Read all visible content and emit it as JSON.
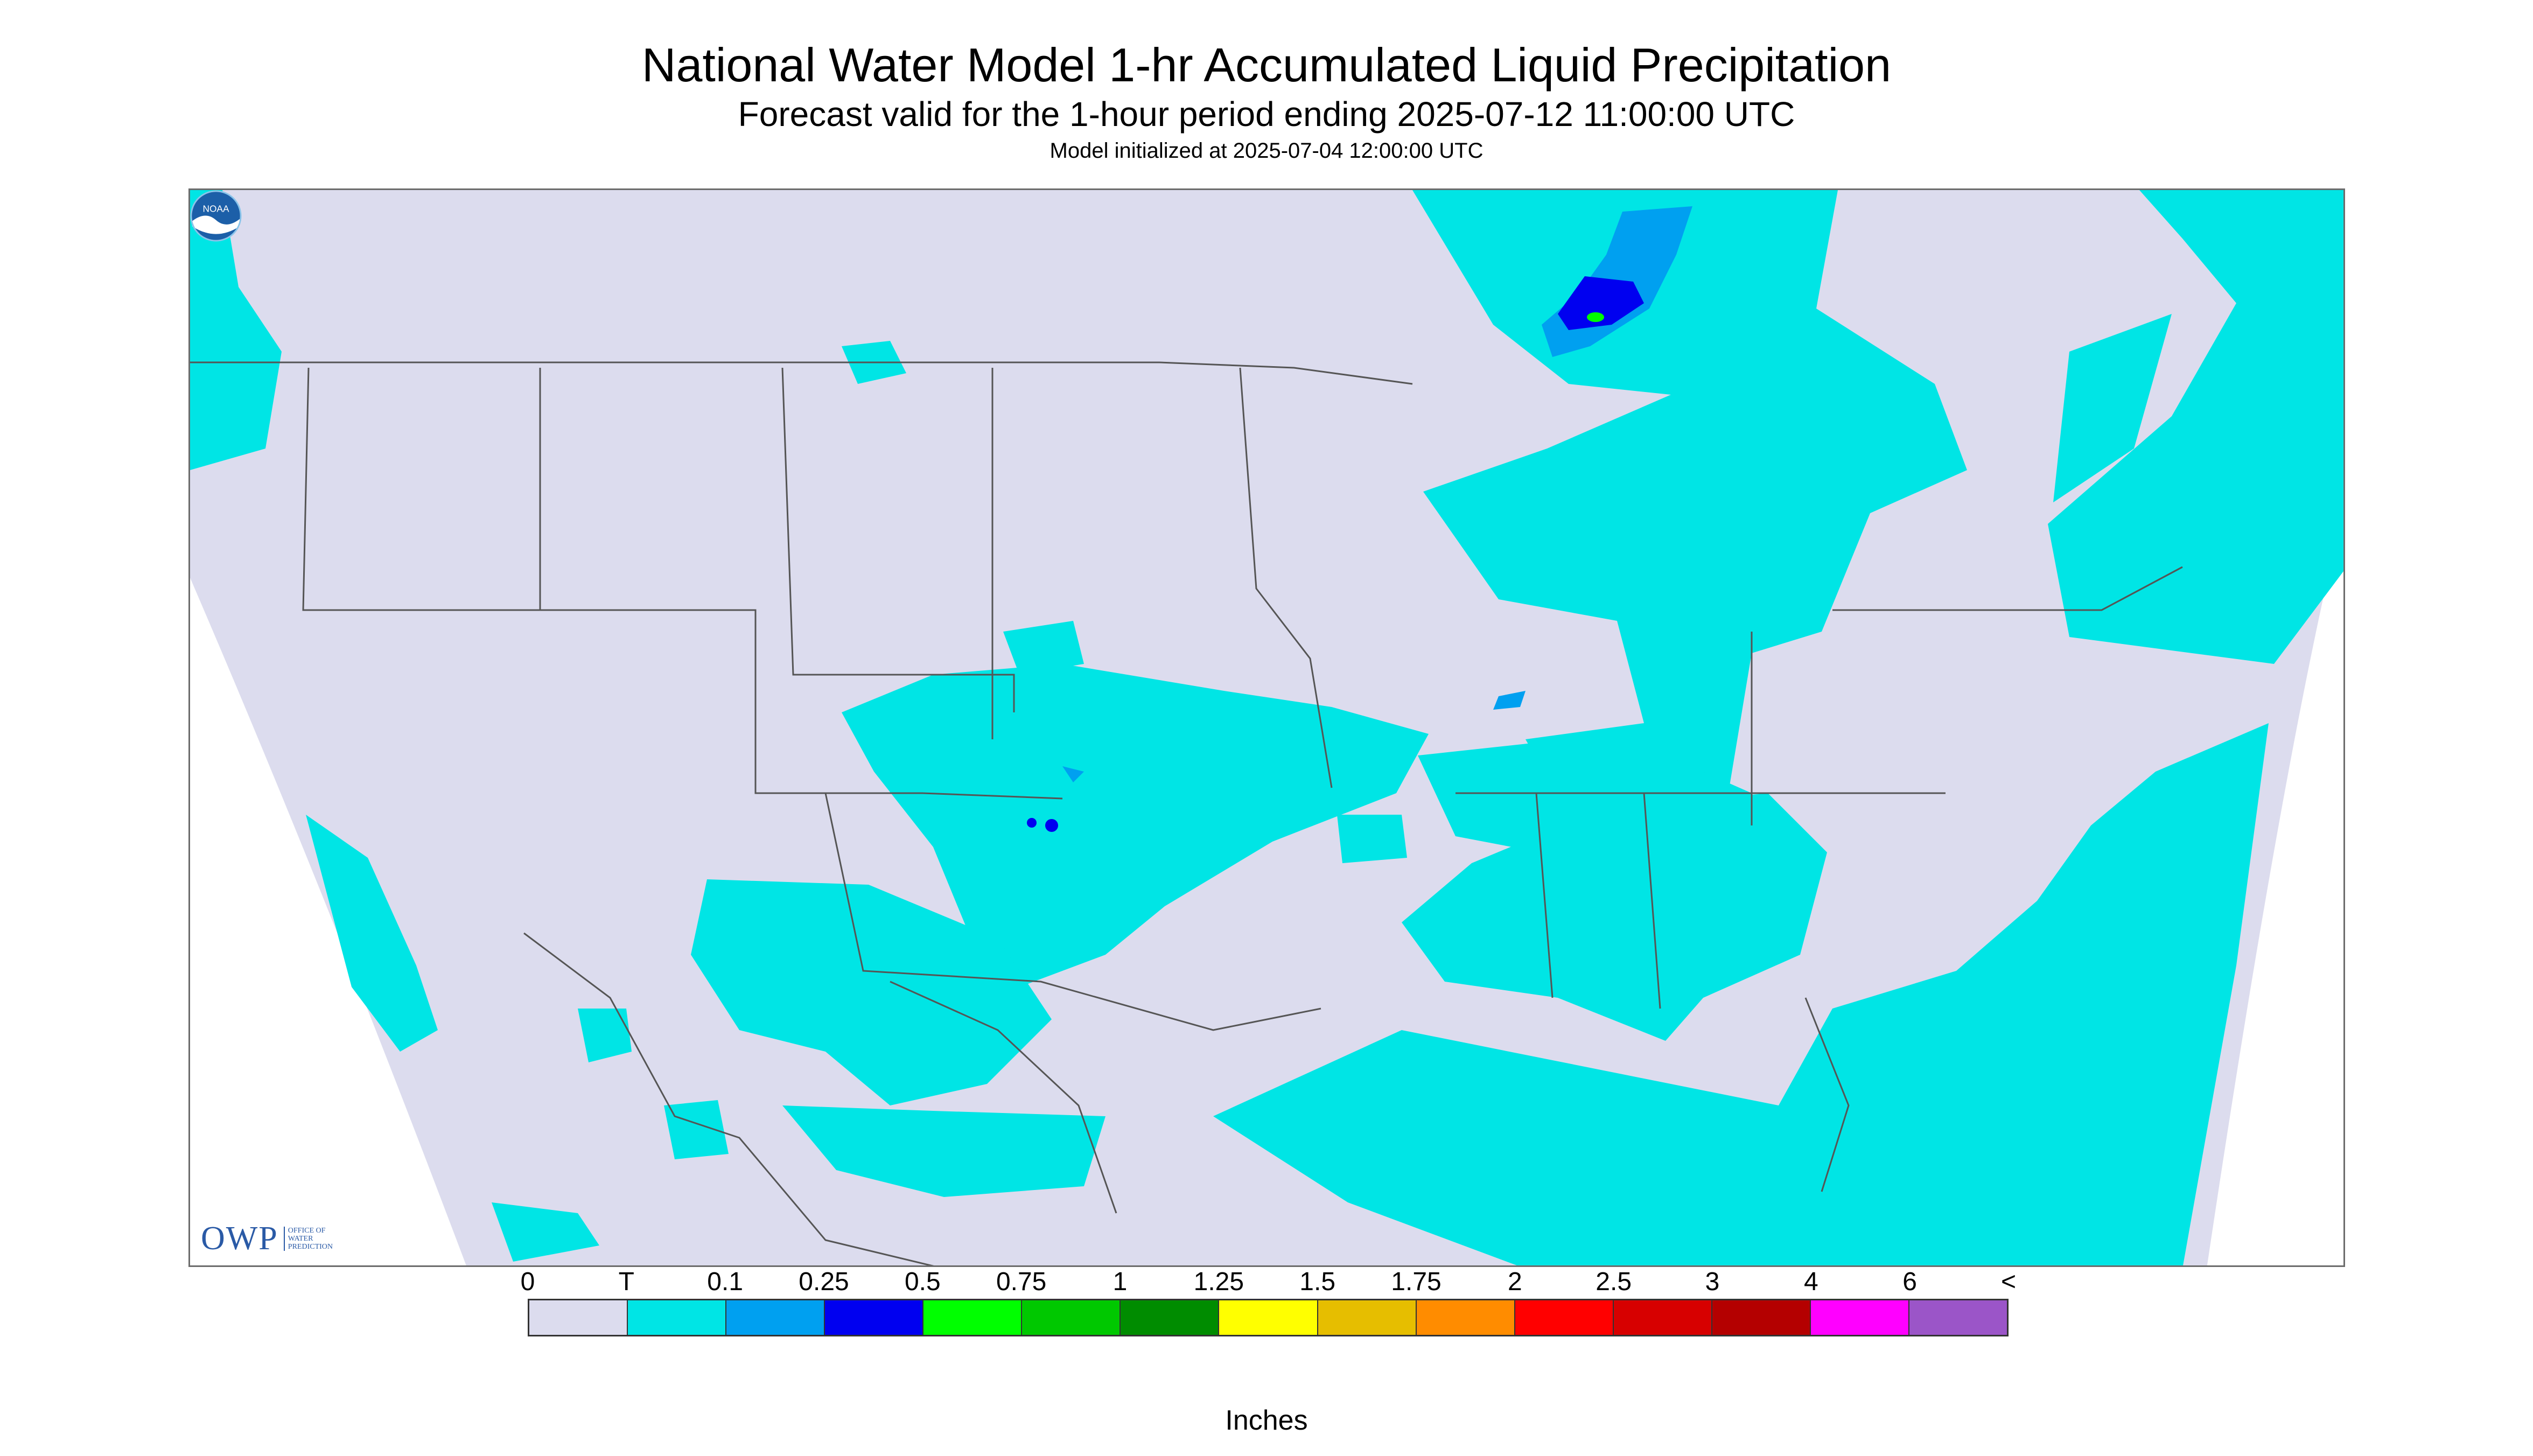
{
  "title": "National Water Model 1-hr Accumulated Liquid Precipitation",
  "subtitle": "Forecast valid for the 1-hour period ending 2025-07-12 11:00:00 UTC",
  "init": "Model initialized at 2025-07-04 12:00:00 UTC",
  "logo": {
    "owp": "OWP",
    "owp_sub": "OFFICE OF\nWATER\nPREDICTION",
    "noaa": "NOAA"
  },
  "legend": {
    "labels": [
      "0",
      "T",
      "0.1",
      "0.25",
      "0.5",
      "0.75",
      "1",
      "1.25",
      "1.5",
      "1.75",
      "2",
      "2.5",
      "3",
      "4",
      "6",
      "<"
    ],
    "colors": [
      "#dcdcee",
      "#00e5e5",
      "#00a0f0",
      "#0000f0",
      "#00ff00",
      "#00c800",
      "#008c00",
      "#ffff00",
      "#e6be00",
      "#ff8c00",
      "#ff0000",
      "#d70000",
      "#b40000",
      "#ff00ff",
      "#9b55c8"
    ],
    "units": "Inches"
  },
  "colors": {
    "no_data": "#dcdcee",
    "trace": "#00e5e5",
    "light": "#00a0f0",
    "heavy": "#0000f0",
    "peak": "#00ff00",
    "borders": "#555555"
  }
}
